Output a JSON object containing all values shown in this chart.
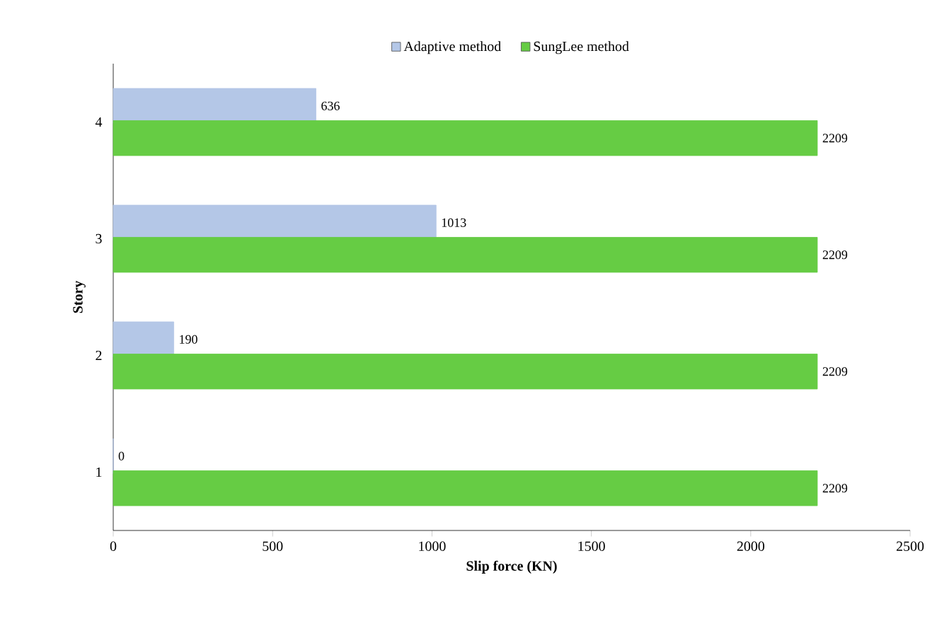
{
  "chart_data": {
    "type": "bar",
    "orientation": "horizontal",
    "xlabel": "Slip force (KN)",
    "ylabel": "Story",
    "categories": [
      "4",
      "3",
      "2",
      "1"
    ],
    "series": [
      {
        "name": "Adaptive method",
        "color": "#b4c7e7",
        "values": [
          636,
          1013,
          190,
          0
        ]
      },
      {
        "name": "SungLee method",
        "color": "#66cc44",
        "values": [
          2209,
          2209,
          2209,
          2209
        ]
      }
    ],
    "xlim": [
      0,
      2500
    ],
    "xticks": [
      0,
      500,
      1000,
      1500,
      2000,
      2500
    ],
    "data_labels": true,
    "legend": "top",
    "grid": false
  }
}
